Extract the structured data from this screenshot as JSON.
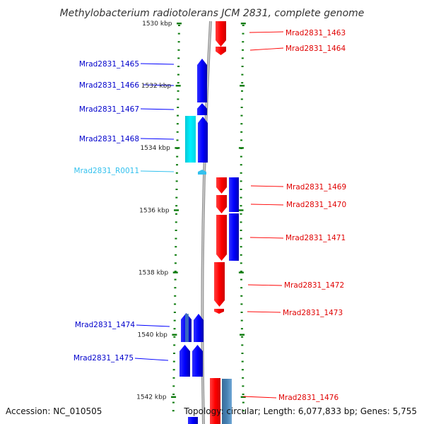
{
  "title": "Methylobacterium radiotolerans JCM 2831, complete genome",
  "footer": {
    "accession": "Accession: NC_010505",
    "summary": "Topology: circular; Length: 6,077,833 bp; Genes: 5,755"
  },
  "colors": {
    "forward_cds": "#ff0000",
    "reverse_cds": "#0000ff",
    "forward_alt": "#4682b4",
    "reverse_alt": "#00e5ee",
    "rna": "#33c1ee",
    "backbone": "#999999",
    "ruler": "#0a7a0a"
  },
  "scale": {
    "ticks": [
      {
        "kbp": 1530,
        "label": "1530 kbp"
      },
      {
        "kbp": 1532,
        "label": "1532 kbp"
      },
      {
        "kbp": 1534,
        "label": "1534 kbp"
      },
      {
        "kbp": 1536,
        "label": "1536 kbp"
      },
      {
        "kbp": 1538,
        "label": "1538 kbp"
      },
      {
        "kbp": 1540,
        "label": "1540 kbp"
      },
      {
        "kbp": 1542,
        "label": "1542 kbp"
      }
    ]
  },
  "labels": {
    "left": [
      {
        "text": "Mrad2831_1465",
        "kind": "reverse"
      },
      {
        "text": "Mrad2831_1466",
        "kind": "reverse"
      },
      {
        "text": "Mrad2831_1467",
        "kind": "reverse"
      },
      {
        "text": "Mrad2831_1468",
        "kind": "reverse"
      },
      {
        "text": "Mrad2831_R0011",
        "kind": "rna"
      },
      {
        "text": "Mrad2831_1474",
        "kind": "reverse"
      },
      {
        "text": "Mrad2831_1475",
        "kind": "reverse"
      }
    ],
    "right": [
      {
        "text": "Mrad2831_1463",
        "kind": "forward"
      },
      {
        "text": "Mrad2831_1464",
        "kind": "forward"
      },
      {
        "text": "Mrad2831_1469",
        "kind": "forward"
      },
      {
        "text": "Mrad2831_1470",
        "kind": "forward"
      },
      {
        "text": "Mrad2831_1471",
        "kind": "forward"
      },
      {
        "text": "Mrad2831_1472",
        "kind": "forward"
      },
      {
        "text": "Mrad2831_1473",
        "kind": "forward"
      },
      {
        "text": "Mrad2831_1476",
        "kind": "forward"
      }
    ]
  }
}
